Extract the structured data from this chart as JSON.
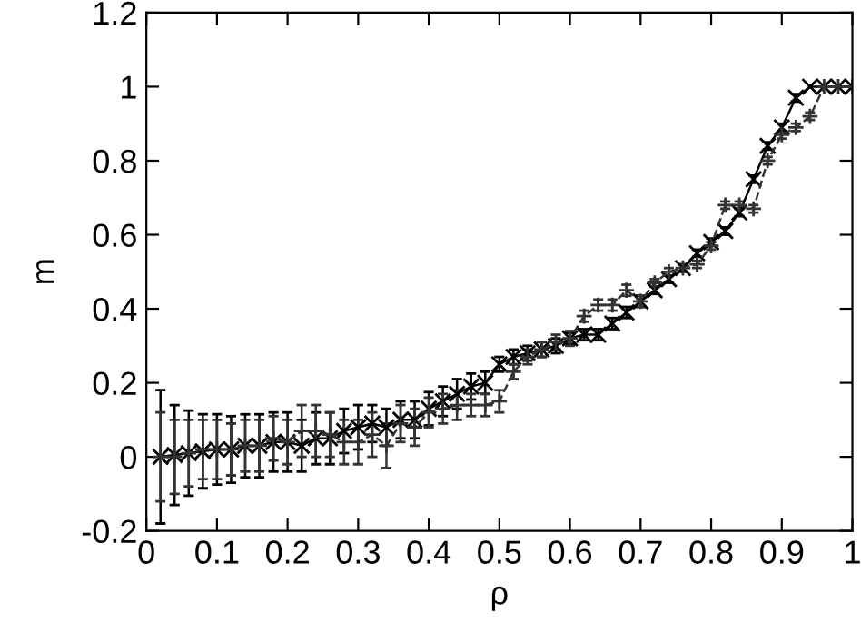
{
  "chart_data": {
    "type": "line",
    "xlabel": "ρ",
    "ylabel": "m",
    "xlim": [
      0,
      1
    ],
    "ylim": [
      -0.2,
      1.2
    ],
    "xticks": [
      0,
      0.1,
      0.2,
      0.3,
      0.4,
      0.5,
      0.6,
      0.7,
      0.8,
      0.9,
      1
    ],
    "yticks": [
      -0.2,
      0,
      0.2,
      0.4,
      0.6,
      0.8,
      1,
      1.2
    ],
    "grid": false,
    "x": [
      0.02,
      0.04,
      0.06,
      0.08,
      0.1,
      0.12,
      0.14,
      0.16,
      0.18,
      0.2,
      0.22,
      0.24,
      0.26,
      0.28,
      0.3,
      0.32,
      0.34,
      0.36,
      0.38,
      0.4,
      0.42,
      0.44,
      0.46,
      0.48,
      0.5,
      0.52,
      0.54,
      0.56,
      0.58,
      0.6,
      0.62,
      0.64,
      0.66,
      0.68,
      0.7,
      0.72,
      0.74,
      0.76,
      0.78,
      0.8,
      0.82,
      0.84,
      0.86,
      0.88,
      0.9,
      0.92,
      0.94,
      0.96,
      0.98,
      1.0
    ],
    "series": [
      {
        "color": "#000000",
        "marker": "cross",
        "line_style": "solid",
        "values": [
          0.0,
          0.005,
          0.01,
          0.015,
          0.02,
          0.02,
          0.03,
          0.03,
          0.04,
          0.04,
          0.03,
          0.05,
          0.05,
          0.07,
          0.08,
          0.09,
          0.08,
          0.1,
          0.1,
          0.13,
          0.15,
          0.17,
          0.19,
          0.2,
          0.25,
          0.27,
          0.28,
          0.29,
          0.3,
          0.32,
          0.33,
          0.33,
          0.36,
          0.39,
          0.42,
          0.45,
          0.48,
          0.51,
          0.55,
          0.58,
          0.61,
          0.66,
          0.75,
          0.84,
          0.89,
          0.97,
          1.0,
          1.0,
          1.0,
          1.0
        ],
        "errors": [
          0.18,
          0.135,
          0.115,
          0.1,
          0.095,
          0.09,
          0.085,
          0.085,
          0.08,
          0.08,
          0.07,
          0.07,
          0.07,
          0.06,
          0.06,
          0.05,
          0.05,
          0.05,
          0.05,
          0.045,
          0.04,
          0.04,
          0.035,
          0.03,
          0.02,
          0.02,
          0.02,
          0.02,
          0.02,
          0.015,
          0.015,
          0.015,
          0.015,
          0.015,
          0.015,
          0.01,
          0.01,
          0.01,
          0.01,
          0.01,
          0.01,
          0.01,
          0.01,
          0.01,
          0.01,
          0.01,
          null,
          null,
          null,
          null
        ]
      },
      {
        "color": "#333333",
        "marker": "plus",
        "line_style": "dashed",
        "values": [
          0.0,
          0.0,
          0.01,
          0.02,
          0.02,
          0.02,
          0.03,
          0.03,
          0.05,
          0.04,
          0.07,
          0.07,
          0.06,
          0.04,
          0.04,
          0.06,
          0.03,
          0.09,
          0.08,
          0.12,
          0.13,
          0.14,
          0.14,
          0.14,
          0.15,
          0.23,
          0.27,
          0.29,
          0.31,
          0.32,
          0.38,
          0.41,
          0.41,
          0.45,
          0.42,
          0.47,
          0.5,
          0.51,
          0.52,
          0.57,
          0.68,
          0.68,
          0.67,
          0.8,
          0.87,
          0.89,
          0.92,
          1.0,
          1.0,
          1.0
        ],
        "errors": [
          0.12,
          0.1,
          0.09,
          0.08,
          0.08,
          0.07,
          0.07,
          0.07,
          0.06,
          0.06,
          0.07,
          0.07,
          0.06,
          0.06,
          0.06,
          0.06,
          0.06,
          0.05,
          0.05,
          0.04,
          0.04,
          0.04,
          0.03,
          0.03,
          0.03,
          0.02,
          0.02,
          0.02,
          0.02,
          0.02,
          0.015,
          0.015,
          0.015,
          0.015,
          0.015,
          0.01,
          0.01,
          0.01,
          0.01,
          0.01,
          0.01,
          0.01,
          0.01,
          0.01,
          0.01,
          0.01,
          0.01,
          null,
          null,
          null
        ]
      }
    ]
  }
}
